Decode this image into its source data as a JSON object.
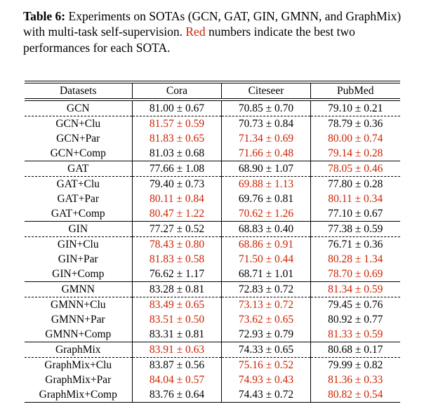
{
  "colors": {
    "highlight": "#cc2200",
    "text": "#000000"
  },
  "caption": {
    "label": "Table 6:",
    "before_red": " Experiments on SOTAs (GCN, GAT, GIN, GMNN, and GraphMix) with multi-task self-supervision. ",
    "red_word": "Red",
    "after_red": " numbers indicate the best two performances for each SOTA."
  },
  "table": {
    "columns": [
      "Datasets",
      "Cora",
      "Citeseer",
      "PubMed"
    ],
    "rows": [
      {
        "label": "GCN",
        "sep": "none",
        "cells": [
          {
            "text": "81.00 ± 0.67",
            "red": false
          },
          {
            "text": "70.85 ± 0.70",
            "red": false
          },
          {
            "text": "79.10 ± 0.21",
            "red": false
          }
        ]
      },
      {
        "label": "GCN+Clu",
        "sep": "dashed",
        "cells": [
          {
            "text": "81.57 ± 0.59",
            "red": true
          },
          {
            "text": "70.73 ± 0.84",
            "red": false
          },
          {
            "text": "78.79 ± 0.36",
            "red": false
          }
        ]
      },
      {
        "label": "GCN+Par",
        "sep": "none",
        "cells": [
          {
            "text": "81.83 ± 0.65",
            "red": true
          },
          {
            "text": "71.34 ± 0.69",
            "red": true
          },
          {
            "text": "80.00 ± 0.74",
            "red": true
          }
        ]
      },
      {
        "label": "GCN+Comp",
        "sep": "none",
        "cells": [
          {
            "text": "81.03 ± 0.68",
            "red": false
          },
          {
            "text": "71.66 ± 0.48",
            "red": true
          },
          {
            "text": "79.14 ± 0.28",
            "red": true
          }
        ]
      },
      {
        "label": "GAT",
        "sep": "solid",
        "cells": [
          {
            "text": "77.66 ± 1.08",
            "red": false
          },
          {
            "text": "68.90 ± 1.07",
            "red": false
          },
          {
            "text": "78.05 ± 0.46",
            "red": true
          }
        ]
      },
      {
        "label": "GAT+Clu",
        "sep": "dashed",
        "cells": [
          {
            "text": "79.40 ± 0.73",
            "red": false
          },
          {
            "text": "69.88 ± 1.13",
            "red": true
          },
          {
            "text": "77.80 ± 0.28",
            "red": false
          }
        ]
      },
      {
        "label": "GAT+Par",
        "sep": "none",
        "cells": [
          {
            "text": "80.11 ± 0.84",
            "red": true
          },
          {
            "text": "69.76 ± 0.81",
            "red": false
          },
          {
            "text": "80.11 ± 0.34",
            "red": true
          }
        ]
      },
      {
        "label": "GAT+Comp",
        "sep": "none",
        "cells": [
          {
            "text": "80.47 ± 1.22",
            "red": true
          },
          {
            "text": "70.62 ± 1.26",
            "red": true
          },
          {
            "text": "77.10 ± 0.67",
            "red": false
          }
        ]
      },
      {
        "label": "GIN",
        "sep": "solid",
        "cells": [
          {
            "text": "77.27 ± 0.52",
            "red": false
          },
          {
            "text": "68.83 ± 0.40",
            "red": false
          },
          {
            "text": "77.38 ± 0.59",
            "red": false
          }
        ]
      },
      {
        "label": "GIN+Clu",
        "sep": "dashed",
        "cells": [
          {
            "text": "78.43 ± 0.80",
            "red": true
          },
          {
            "text": "68.86 ± 0.91",
            "red": true
          },
          {
            "text": "76.71 ± 0.36",
            "red": false
          }
        ]
      },
      {
        "label": "GIN+Par",
        "sep": "none",
        "cells": [
          {
            "text": "81.83 ± 0.58",
            "red": true
          },
          {
            "text": "71.50 ± 0.44",
            "red": true
          },
          {
            "text": "80.28 ± 1.34",
            "red": true
          }
        ]
      },
      {
        "label": "GIN+Comp",
        "sep": "none",
        "cells": [
          {
            "text": "76.62 ± 1.17",
            "red": false
          },
          {
            "text": "68.71 ± 1.01",
            "red": false
          },
          {
            "text": "78.70 ± 0.69",
            "red": true
          }
        ]
      },
      {
        "label": "GMNN",
        "sep": "solid",
        "cells": [
          {
            "text": "83.28 ± 0.81",
            "red": false
          },
          {
            "text": "72.83 ± 0.72",
            "red": false
          },
          {
            "text": "81.34 ± 0.59",
            "red": true
          }
        ]
      },
      {
        "label": "GMNN+Clu",
        "sep": "dashed",
        "cells": [
          {
            "text": "83.49 ± 0.65",
            "red": true
          },
          {
            "text": "73.13 ± 0.72",
            "red": true
          },
          {
            "text": "79.45 ± 0.76",
            "red": false
          }
        ]
      },
      {
        "label": "GMNN+Par",
        "sep": "none",
        "cells": [
          {
            "text": "83.51 ± 0.50",
            "red": true
          },
          {
            "text": "73.62 ± 0.65",
            "red": true
          },
          {
            "text": "80.92 ± 0.77",
            "red": false
          }
        ]
      },
      {
        "label": "GMNN+Comp",
        "sep": "none",
        "cells": [
          {
            "text": "83.31 ± 0.81",
            "red": false
          },
          {
            "text": "72.93 ± 0.79",
            "red": false
          },
          {
            "text": "81.33 ± 0.59",
            "red": true
          }
        ]
      },
      {
        "label": "GraphMix",
        "sep": "solid",
        "cells": [
          {
            "text": "83.91 ± 0.63",
            "red": true
          },
          {
            "text": "74.33 ± 0.65",
            "red": false
          },
          {
            "text": "80.68 ± 0.17",
            "red": false
          }
        ]
      },
      {
        "label": "GraphMix+Clu",
        "sep": "dashed",
        "cells": [
          {
            "text": "83.87 ± 0.56",
            "red": false
          },
          {
            "text": "75.16 ± 0.52",
            "red": true
          },
          {
            "text": "79.99 ± 0.82",
            "red": false
          }
        ]
      },
      {
        "label": "GraphMix+Par",
        "sep": "none",
        "cells": [
          {
            "text": "84.04 ± 0.57",
            "red": true
          },
          {
            "text": "74.93 ± 0.43",
            "red": true
          },
          {
            "text": "81.36 ± 0.33",
            "red": true
          }
        ]
      },
      {
        "label": "GraphMix+Comp",
        "sep": "none",
        "cells": [
          {
            "text": "83.76 ± 0.64",
            "red": false
          },
          {
            "text": "74.43 ± 0.72",
            "red": false
          },
          {
            "text": "80.82 ± 0.54",
            "red": true
          }
        ]
      }
    ]
  }
}
